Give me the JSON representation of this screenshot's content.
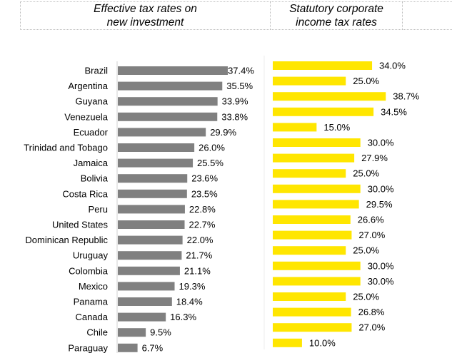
{
  "headers": {
    "left": "Effective tax rates on\nnew investment",
    "right": "Statutory corporate\nincome tax rates",
    "extra": ""
  },
  "colors": {
    "effective": "#808080",
    "statutory": "#FFE600"
  },
  "chart_data": [
    {
      "type": "bar",
      "orientation": "horizontal",
      "title": "Effective tax rates on new investment",
      "categories": [
        "Brazil",
        "Argentina",
        "Guyana",
        "Venezuela",
        "Ecuador",
        "Trinidad and Tobago",
        "Jamaica",
        "Bolivia",
        "Costa Rica",
        "Peru",
        "United States",
        "Dominican Republic",
        "Uruguay",
        "Colombia",
        "Mexico",
        "Panama",
        "Canada",
        "Chile",
        "Paraguay"
      ],
      "values": [
        37.4,
        35.5,
        33.9,
        33.8,
        29.9,
        26.0,
        25.5,
        23.6,
        23.5,
        22.8,
        22.7,
        22.0,
        21.7,
        21.1,
        19.3,
        18.4,
        16.3,
        9.5,
        6.7
      ],
      "data_labels": [
        "37.4%",
        "35.5%",
        "33.9%",
        "33.8%",
        "29.9%",
        "26.0%",
        "25.5%",
        "23.6%",
        "23.5%",
        "22.8%",
        "22.7%",
        "22.0%",
        "21.7%",
        "21.1%",
        "19.3%",
        "18.4%",
        "16.3%",
        "9.5%",
        "6.7%"
      ],
      "color": "#808080",
      "xlim": [
        0,
        40
      ],
      "grid": false
    },
    {
      "type": "bar",
      "orientation": "horizontal",
      "title": "Statutory corporate income tax rates",
      "categories": [
        "Brazil",
        "Argentina",
        "Guyana",
        "Venezuela",
        "Ecuador",
        "Trinidad and Tobago",
        "Jamaica",
        "Bolivia",
        "Costa Rica",
        "Peru",
        "United States",
        "Dominican Republic",
        "Uruguay",
        "Colombia",
        "Mexico",
        "Panama",
        "Canada",
        "Chile",
        "Paraguay"
      ],
      "values": [
        34.0,
        25.0,
        38.7,
        34.5,
        15.0,
        30.0,
        27.9,
        25.0,
        30.0,
        29.5,
        26.6,
        27.0,
        25.0,
        30.0,
        30.0,
        25.0,
        26.8,
        27.0,
        10.0
      ],
      "data_labels": [
        "34.0%",
        "25.0%",
        "38.7%",
        "34.5%",
        "15.0%",
        "30.0%",
        "27.9%",
        "25.0%",
        "30.0%",
        "29.5%",
        "26.6%",
        "27.0%",
        "25.0%",
        "30.0%",
        "30.0%",
        "25.0%",
        "26.8%",
        "27.0%",
        "10.0%"
      ],
      "color": "#FFE600",
      "xlim": [
        0,
        40
      ],
      "grid": false
    }
  ]
}
